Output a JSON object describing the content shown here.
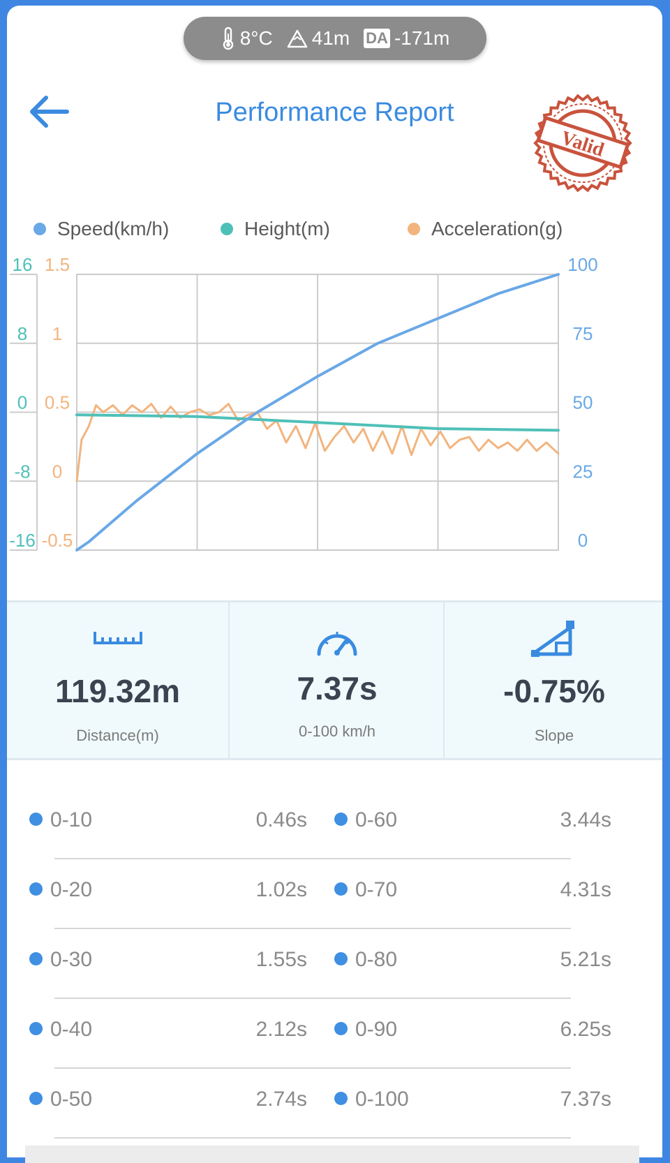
{
  "environment": {
    "temperature": "8°C",
    "altitude": "41m",
    "density_altitude_label": "DA",
    "density_altitude": "-171m"
  },
  "header": {
    "title": "Performance Report",
    "stamp_text": "Valid"
  },
  "colors": {
    "accent": "#3a8be0",
    "speed": "#6aa8e6",
    "height": "#4fc0b8",
    "acceleration": "#f2b47e",
    "stamp": "#c9533d",
    "background": "#3f86e3"
  },
  "legend": [
    {
      "label": "Speed(km/h)",
      "color": "#6aa8e6"
    },
    {
      "label": "Height(m)",
      "color": "#4fc0b8"
    },
    {
      "label": "Acceleration(g)",
      "color": "#f2b47e"
    }
  ],
  "chart_data": {
    "type": "line",
    "grid": true,
    "legend_position": "top",
    "x_range": [
      0,
      4
    ],
    "axes": {
      "height": {
        "side": "left-outer",
        "ticks": [
          "16",
          "8",
          "0",
          "-8",
          "-16"
        ],
        "range": [
          -16,
          16
        ]
      },
      "acceleration": {
        "side": "left-inner",
        "ticks": [
          "1.5",
          "1",
          "0.5",
          "0",
          "-0.5"
        ],
        "range": [
          -0.5,
          1.5
        ]
      },
      "speed": {
        "side": "right",
        "ticks": [
          "100",
          "75",
          "50",
          "25",
          "0"
        ],
        "range": [
          0,
          100
        ]
      }
    },
    "series": [
      {
        "name": "Speed(km/h)",
        "axis": "speed",
        "x": [
          0,
          0.1,
          0.5,
          1.0,
          1.5,
          2.0,
          2.5,
          3.0,
          3.5,
          4.0
        ],
        "y": [
          0,
          3,
          18,
          35,
          50,
          63,
          75,
          84,
          93,
          100
        ]
      },
      {
        "name": "Height(m)",
        "axis": "height",
        "x": [
          0,
          1.0,
          2.0,
          3.0,
          4.0
        ],
        "y": [
          -0.3,
          -0.5,
          -1.2,
          -1.9,
          -2.1
        ]
      },
      {
        "name": "Acceleration(g)",
        "axis": "acceleration",
        "x": [
          0,
          0.04,
          0.1,
          0.16,
          0.22,
          0.3,
          0.38,
          0.46,
          0.54,
          0.62,
          0.7,
          0.78,
          0.86,
          0.94,
          1.02,
          1.1,
          1.18,
          1.26,
          1.34,
          1.42,
          1.5,
          1.58,
          1.66,
          1.74,
          1.82,
          1.9,
          1.98,
          2.06,
          2.14,
          2.22,
          2.3,
          2.38,
          2.46,
          2.54,
          2.62,
          2.7,
          2.78,
          2.86,
          2.94,
          3.02,
          3.1,
          3.18,
          3.26,
          3.34,
          3.42,
          3.5,
          3.58,
          3.66,
          3.74,
          3.82,
          3.9,
          4.0
        ],
        "y": [
          0.0,
          0.3,
          0.4,
          0.55,
          0.5,
          0.55,
          0.48,
          0.55,
          0.5,
          0.56,
          0.46,
          0.54,
          0.46,
          0.5,
          0.52,
          0.48,
          0.5,
          0.56,
          0.44,
          0.48,
          0.5,
          0.38,
          0.44,
          0.28,
          0.4,
          0.24,
          0.42,
          0.22,
          0.32,
          0.4,
          0.28,
          0.38,
          0.22,
          0.36,
          0.2,
          0.4,
          0.19,
          0.38,
          0.26,
          0.36,
          0.24,
          0.3,
          0.32,
          0.22,
          0.3,
          0.24,
          0.28,
          0.22,
          0.3,
          0.22,
          0.28,
          0.2
        ]
      }
    ]
  },
  "stats": [
    {
      "value": "119.32m",
      "label": "Distance(m)",
      "icon": "ruler-icon"
    },
    {
      "value": "7.37s",
      "label": "0-100 km/h",
      "icon": "speedometer-icon"
    },
    {
      "value": "-0.75%",
      "label": "Slope",
      "icon": "slope-icon"
    }
  ],
  "splits": [
    {
      "left_label": "0-10",
      "left_time": "0.46s",
      "right_label": "0-60",
      "right_time": "3.44s"
    },
    {
      "left_label": "0-20",
      "left_time": "1.02s",
      "right_label": "0-70",
      "right_time": "4.31s"
    },
    {
      "left_label": "0-30",
      "left_time": "1.55s",
      "right_label": "0-80",
      "right_time": "5.21s"
    },
    {
      "left_label": "0-40",
      "left_time": "2.12s",
      "right_label": "0-90",
      "right_time": "6.25s"
    },
    {
      "left_label": "0-50",
      "left_time": "2.74s",
      "right_label": "0-100",
      "right_time": "7.37s"
    }
  ]
}
